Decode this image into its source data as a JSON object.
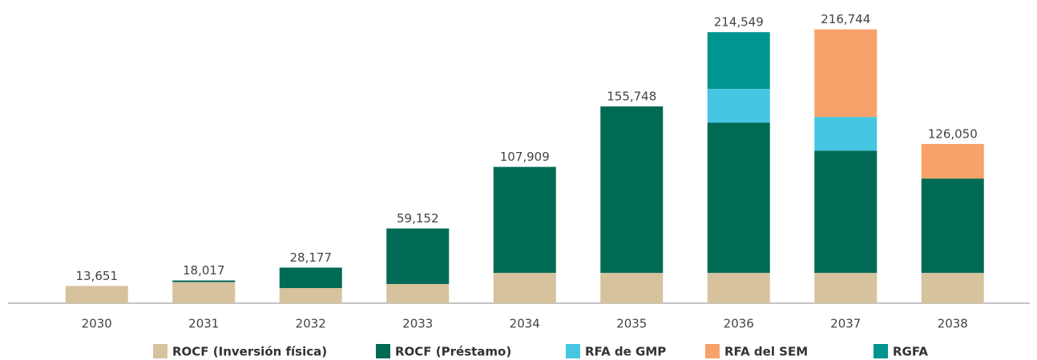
{
  "chart_data": {
    "type": "stacked_bar",
    "categories": [
      "2030",
      "2031",
      "2032",
      "2033",
      "2034",
      "2035",
      "2036",
      "2037",
      "2038"
    ],
    "series": [
      {
        "name": "ROCF (Inversión física)",
        "color": "#d7c29e",
        "values": [
          13651,
          16700,
          12000,
          15200,
          24000,
          24000,
          24000,
          24000,
          24000
        ]
      },
      {
        "name": "ROCF (Préstamo)",
        "color": "#006a55",
        "values": [
          null,
          1317,
          16177,
          43952,
          83909,
          131748,
          119000,
          96800,
          74700
        ]
      },
      {
        "name": "RFA de GMP",
        "color": "#45c6e3",
        "values": [
          null,
          null,
          null,
          null,
          null,
          null,
          26600,
          26600,
          null
        ]
      },
      {
        "name": "RFA del SEM",
        "color": "#f7a26b",
        "values": [
          null,
          null,
          null,
          null,
          null,
          null,
          null,
          69344,
          27350
        ]
      },
      {
        "name": "RGFA",
        "color": "#00958f",
        "values": [
          null,
          null,
          null,
          null,
          null,
          null,
          44949,
          null,
          null
        ]
      }
    ],
    "totals": [
      13651,
      18017,
      28177,
      59152,
      107909,
      155748,
      214549,
      216744,
      126050
    ],
    "total_labels": [
      "13,651",
      "18,017",
      "28,177",
      "59,152",
      "107,909",
      "155,748",
      "214,549",
      "216,744",
      "126,050"
    ],
    "ylim": [
      0,
      240000
    ],
    "legend": "bottom"
  }
}
